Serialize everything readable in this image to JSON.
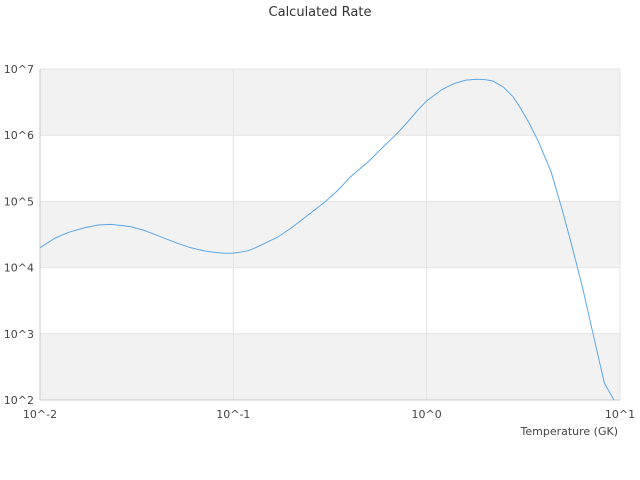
{
  "chart_data": {
    "type": "line",
    "title": "Calculated Rate",
    "xlabel": "Temperature (GK)",
    "ylabel": "",
    "x_scale": "log",
    "y_scale": "log",
    "xlim": [
      0.01,
      10
    ],
    "ylim": [
      100,
      10000000
    ],
    "grid": true,
    "legend": "none",
    "x_tick_labels": [
      "10^-2",
      "10^-1",
      "10^0",
      "10^1"
    ],
    "y_tick_labels": [
      "10^2",
      "10^3",
      "10^4",
      "10^5",
      "10^6",
      "10^7"
    ],
    "x_tick_values": [
      0.01,
      0.1,
      1,
      10
    ],
    "y_tick_values": [
      100,
      1000,
      10000,
      100000,
      1000000,
      10000000
    ],
    "series": [
      {
        "color": "#5aa8e8",
        "x": [
          0.01,
          0.012,
          0.014,
          0.017,
          0.02,
          0.023,
          0.027,
          0.03,
          0.035,
          0.04,
          0.05,
          0.06,
          0.07,
          0.08,
          0.09,
          0.1,
          0.12,
          0.14,
          0.17,
          0.2,
          0.25,
          0.3,
          0.35,
          0.4,
          0.5,
          0.6,
          0.7,
          0.8,
          0.9,
          1.0,
          1.2,
          1.4,
          1.6,
          1.8,
          2.0,
          2.2,
          2.5,
          2.8,
          3.0,
          3.4,
          3.8,
          4.4,
          5.0,
          5.6,
          6.4,
          7.2,
          8.3,
          9.3
        ],
        "y": [
          20000,
          28000,
          34000,
          40000,
          44000,
          45000,
          43000,
          41000,
          36000,
          31000,
          24000,
          20000,
          18000,
          17000,
          16500,
          16500,
          18000,
          22000,
          29000,
          40000,
          66000,
          100000,
          150000,
          230000,
          400000,
          680000,
          1050000,
          1600000,
          2400000,
          3300000,
          4900000,
          6100000,
          6800000,
          7000000,
          6900000,
          6600000,
          5300000,
          3800000,
          2800000,
          1500000,
          780000,
          280000,
          78000,
          23000,
          5000,
          1100,
          180,
          100
        ]
      }
    ]
  }
}
